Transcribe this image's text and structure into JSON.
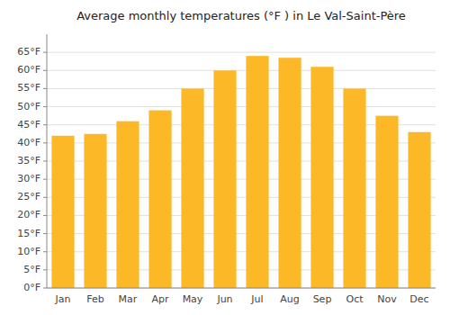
{
  "chart_data": {
    "type": "bar",
    "title": "Average monthly temperatures (°F ) in Le Val-Saint-Père",
    "categories": [
      "Jan",
      "Feb",
      "Mar",
      "Apr",
      "May",
      "Jun",
      "Jul",
      "Aug",
      "Sep",
      "Oct",
      "Nov",
      "Dec"
    ],
    "values": [
      42,
      42.5,
      46,
      49,
      55,
      60,
      64,
      63.5,
      61,
      55,
      47.5,
      43
    ],
    "color": "#FDB827",
    "ylim": [
      0,
      70
    ],
    "yticks": [
      {
        "value": 0,
        "label": "0°F"
      },
      {
        "value": 5,
        "label": "5°F"
      },
      {
        "value": 10,
        "label": "10°F"
      },
      {
        "value": 15,
        "label": "15°F"
      },
      {
        "value": 20,
        "label": "20°F"
      },
      {
        "value": 25,
        "label": "25°F"
      },
      {
        "value": 30,
        "label": "30°F"
      },
      {
        "value": 35,
        "label": "35°F"
      },
      {
        "value": 40,
        "label": "40°F"
      },
      {
        "value": 45,
        "label": "45°F"
      },
      {
        "value": 50,
        "label": "50°F"
      },
      {
        "value": 55,
        "label": "55°F"
      },
      {
        "value": 60,
        "label": "60°F"
      },
      {
        "value": 65,
        "label": "65°F"
      }
    ],
    "grid": true
  }
}
